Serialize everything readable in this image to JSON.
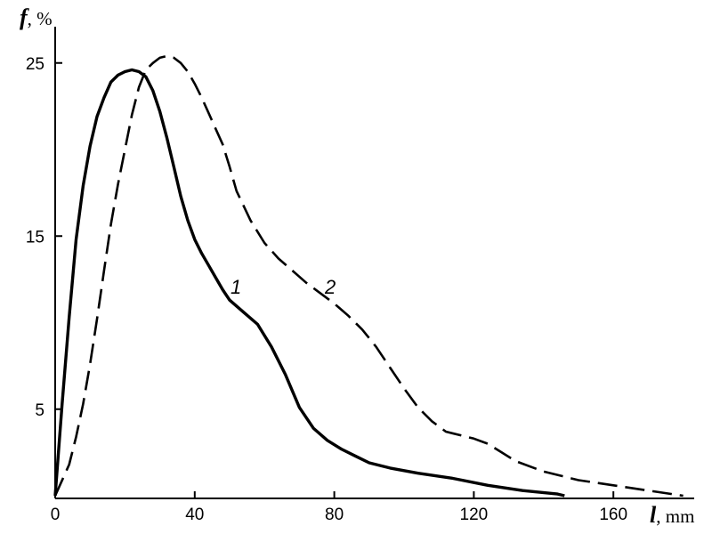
{
  "chart_data": {
    "type": "line",
    "xlabel": {
      "symbol": "l",
      "unit": ", mm"
    },
    "ylabel": {
      "symbol": "f",
      "unit": ", %"
    },
    "xlim": [
      0,
      180
    ],
    "ylim": [
      0,
      26
    ],
    "x_ticks": [
      0,
      40,
      80,
      120,
      160
    ],
    "y_ticks": [
      5,
      15,
      25
    ],
    "grid": false,
    "series": [
      {
        "name": "1",
        "line_style": "solid",
        "x": [
          0,
          2,
          4,
          6,
          8,
          10,
          12,
          14,
          16,
          18,
          20,
          22,
          24,
          26,
          28,
          30,
          32,
          34,
          36,
          38,
          40,
          42,
          44,
          46,
          48,
          50,
          54,
          58,
          62,
          66,
          70,
          74,
          78,
          82,
          86,
          90,
          96,
          104,
          114,
          124,
          134,
          144,
          146
        ],
        "y": [
          0,
          5.3,
          10.3,
          14.8,
          17.9,
          20.2,
          21.9,
          23.0,
          23.9,
          24.3,
          24.5,
          24.6,
          24.5,
          24.2,
          23.4,
          22.2,
          20.7,
          19.0,
          17.3,
          15.9,
          14.8,
          14.0,
          13.3,
          12.6,
          11.9,
          11.3,
          10.6,
          9.9,
          8.6,
          7.0,
          5.1,
          3.9,
          3.2,
          2.7,
          2.3,
          1.9,
          1.6,
          1.3,
          1.0,
          0.6,
          0.3,
          0.1,
          0
        ]
      },
      {
        "name": "2",
        "line_style": "dashed",
        "x": [
          0,
          4,
          6,
          8,
          10,
          12,
          14,
          16,
          18,
          20,
          22,
          24,
          26,
          28,
          30,
          32,
          34,
          36,
          38,
          40,
          42,
          44,
          46,
          48,
          50,
          52,
          56,
          60,
          64,
          68,
          72,
          76,
          80,
          84,
          88,
          92,
          96,
          100,
          104,
          108,
          112,
          116,
          120,
          124,
          128,
          132,
          140,
          150,
          160,
          170,
          180
        ],
        "y": [
          0,
          1.8,
          3.4,
          5.3,
          7.6,
          10.2,
          13.0,
          15.7,
          18.0,
          20.0,
          22.0,
          23.6,
          24.6,
          25.0,
          25.3,
          25.4,
          25.3,
          25.0,
          24.5,
          23.8,
          23.0,
          22.1,
          21.2,
          20.3,
          19.0,
          17.6,
          15.9,
          14.6,
          13.7,
          13.0,
          12.3,
          11.7,
          11.1,
          10.4,
          9.6,
          8.6,
          7.4,
          6.2,
          5.1,
          4.3,
          3.7,
          3.5,
          3.3,
          3.0,
          2.5,
          2.0,
          1.4,
          0.9,
          0.6,
          0.3,
          0
        ]
      }
    ]
  }
}
